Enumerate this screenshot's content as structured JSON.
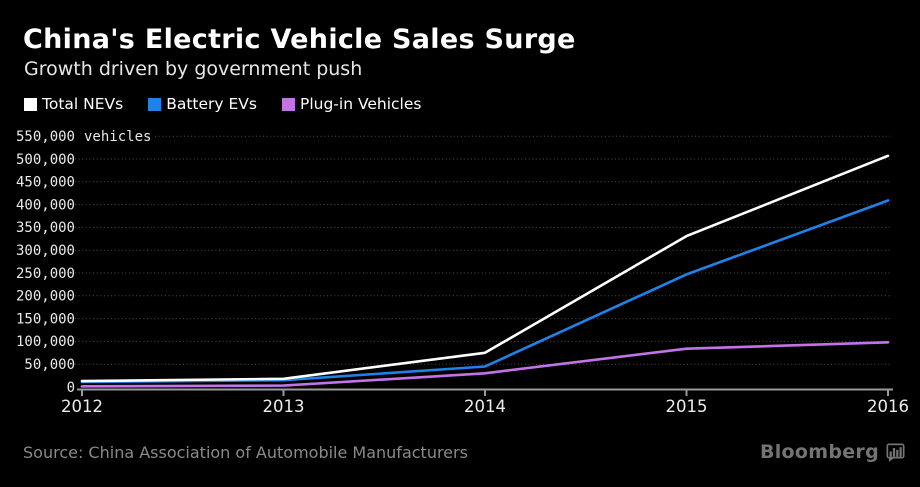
{
  "header": {
    "title": "China's Electric Vehicle Sales Surge",
    "subtitle": "Growth driven by government push"
  },
  "chart_data": {
    "type": "line",
    "x": [
      2012,
      2013,
      2014,
      2015,
      2016
    ],
    "series": [
      {
        "name": "Total NEVs",
        "color": "#ffffff",
        "values": [
          13000,
          18000,
          75000,
          331000,
          507000
        ]
      },
      {
        "name": "Battery EVs",
        "color": "#1f82e8",
        "values": [
          11000,
          15000,
          45000,
          247000,
          409000
        ]
      },
      {
        "name": "Plug-in Vehicles",
        "color": "#c273e8",
        "values": [
          1500,
          3000,
          30000,
          84000,
          98000
        ]
      }
    ],
    "ylabel_suffix": "vehicles",
    "ylim": [
      0,
      550000
    ],
    "ytick_step": 50000,
    "grid": "dotted-horizontal",
    "legend_position": "top-left",
    "axis_text_color": "#e9e9e9"
  },
  "footer": {
    "source": "Source: China Association of Automobile Manufacturers",
    "brand": "Bloomberg"
  }
}
